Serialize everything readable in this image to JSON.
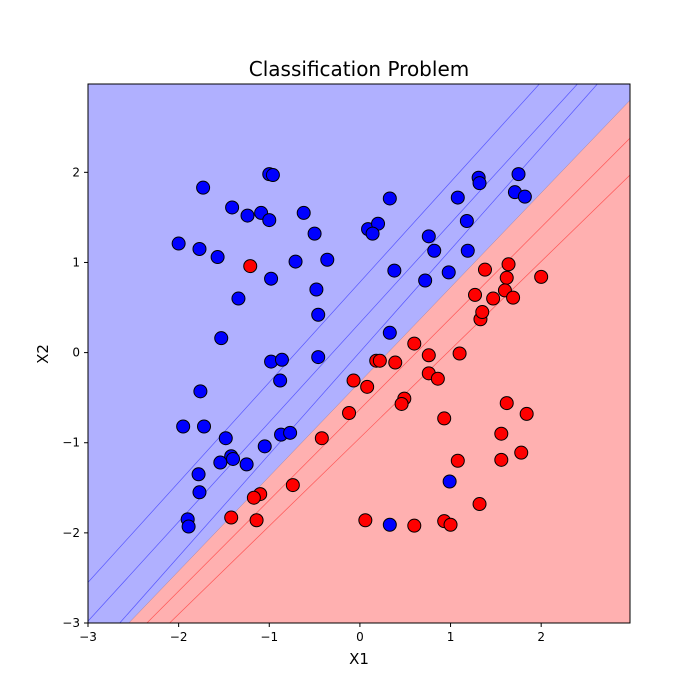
{
  "chart_data": {
    "type": "scatter",
    "title": "Classification Problem",
    "xlabel": "X1",
    "ylabel": "X2",
    "xlim": [
      -3,
      2.98
    ],
    "ylim": [
      -3,
      2.98
    ],
    "x_ticks": [
      -3,
      -2,
      -1,
      0,
      1,
      2
    ],
    "y_ticks": [
      -3,
      -2,
      -1,
      0,
      1,
      2
    ],
    "grid": false,
    "decision_regions": {
      "upper_left_color": "#b0b0ff",
      "lower_right_color": "#ffb0b0",
      "boundary_color": "#000000",
      "boundary_line": [
        [
          -2.55,
          -3.0
        ],
        [
          2.98,
          2.8
        ]
      ],
      "contour_lines_blue": [
        [
          [
            -3.0,
            -2.98
          ],
          [
            2.4,
            2.98
          ]
        ],
        [
          [
            -3.0,
            -2.55
          ],
          [
            1.98,
            2.98
          ]
        ],
        [
          [
            -2.65,
            -3.0
          ],
          [
            2.62,
            2.98
          ]
        ]
      ],
      "contour_lines_red": [
        [
          [
            -2.35,
            -3.0
          ],
          [
            2.98,
            2.38
          ]
        ],
        [
          [
            -2.1,
            -3.0
          ],
          [
            2.98,
            1.97
          ]
        ]
      ]
    },
    "series": [
      {
        "color": "#0000ff",
        "points": [
          [
            -1.73,
            1.83
          ],
          [
            -1.0,
            1.98
          ],
          [
            -0.96,
            1.97
          ],
          [
            -1.41,
            1.61
          ],
          [
            -1.24,
            1.52
          ],
          [
            -1.09,
            1.55
          ],
          [
            -1.0,
            1.47
          ],
          [
            -0.62,
            1.55
          ],
          [
            -0.5,
            1.32
          ],
          [
            -2.0,
            1.21
          ],
          [
            -1.77,
            1.15
          ],
          [
            -1.57,
            1.06
          ],
          [
            -0.71,
            1.01
          ],
          [
            -0.36,
            1.03
          ],
          [
            -0.98,
            0.82
          ],
          [
            -1.34,
            0.6
          ],
          [
            -0.48,
            0.7
          ],
          [
            -0.46,
            0.42
          ],
          [
            -1.53,
            0.16
          ],
          [
            -0.98,
            -0.1
          ],
          [
            -0.86,
            -0.08
          ],
          [
            -0.46,
            -0.05
          ],
          [
            -0.88,
            -0.31
          ],
          [
            -1.76,
            -0.43
          ],
          [
            -1.95,
            -0.82
          ],
          [
            -1.72,
            -0.82
          ],
          [
            -1.48,
            -0.95
          ],
          [
            -0.87,
            -0.91
          ],
          [
            -0.77,
            -0.89
          ],
          [
            -1.05,
            -1.04
          ],
          [
            -1.42,
            -1.15
          ],
          [
            -1.4,
            -1.18
          ],
          [
            -1.54,
            -1.22
          ],
          [
            -1.25,
            -1.24
          ],
          [
            -1.78,
            -1.35
          ],
          [
            -1.77,
            -1.55
          ],
          [
            -1.9,
            -1.85
          ],
          [
            -1.89,
            -1.93
          ],
          [
            0.33,
            1.71
          ],
          [
            0.09,
            1.37
          ],
          [
            0.2,
            1.43
          ],
          [
            0.14,
            1.32
          ],
          [
            0.76,
            1.29
          ],
          [
            0.38,
            0.91
          ],
          [
            0.82,
            1.13
          ],
          [
            0.72,
            0.8
          ],
          [
            0.98,
            0.89
          ],
          [
            1.08,
            1.72
          ],
          [
            1.31,
            1.94
          ],
          [
            1.32,
            1.88
          ],
          [
            1.18,
            1.46
          ],
          [
            1.19,
            1.13
          ],
          [
            1.75,
            1.98
          ],
          [
            1.71,
            1.78
          ],
          [
            1.82,
            1.73
          ],
          [
            0.33,
            0.22
          ],
          [
            0.99,
            -1.43
          ],
          [
            0.33,
            -1.91
          ]
        ]
      },
      {
        "color": "#ff0000",
        "points": [
          [
            -1.21,
            0.96
          ],
          [
            0.6,
            0.1
          ],
          [
            0.18,
            -0.09
          ],
          [
            0.22,
            -0.09
          ],
          [
            0.39,
            -0.11
          ],
          [
            0.76,
            -0.03
          ],
          [
            1.1,
            -0.01
          ],
          [
            -0.07,
            -0.31
          ],
          [
            0.08,
            -0.38
          ],
          [
            0.76,
            -0.23
          ],
          [
            0.86,
            -0.29
          ],
          [
            -0.12,
            -0.67
          ],
          [
            0.49,
            -0.51
          ],
          [
            0.46,
            -0.57
          ],
          [
            0.93,
            -0.73
          ],
          [
            -0.42,
            -0.95
          ],
          [
            1.08,
            -1.2
          ],
          [
            -0.74,
            -1.47
          ],
          [
            -1.1,
            -1.57
          ],
          [
            -1.17,
            -1.61
          ],
          [
            -1.42,
            -1.83
          ],
          [
            -1.14,
            -1.86
          ],
          [
            0.06,
            -1.86
          ],
          [
            0.6,
            -1.92
          ],
          [
            0.93,
            -1.87
          ],
          [
            1.0,
            -1.91
          ],
          [
            1.32,
            -1.68
          ],
          [
            1.27,
            0.64
          ],
          [
            1.38,
            0.92
          ],
          [
            1.64,
            0.98
          ],
          [
            1.62,
            0.83
          ],
          [
            1.6,
            0.69
          ],
          [
            1.47,
            0.6
          ],
          [
            1.69,
            0.61
          ],
          [
            1.33,
            0.37
          ],
          [
            1.35,
            0.45
          ],
          [
            2.0,
            0.84
          ],
          [
            1.62,
            -0.56
          ],
          [
            1.84,
            -0.68
          ],
          [
            1.56,
            -0.9
          ],
          [
            1.56,
            -1.19
          ],
          [
            1.78,
            -1.11
          ]
        ]
      }
    ]
  }
}
